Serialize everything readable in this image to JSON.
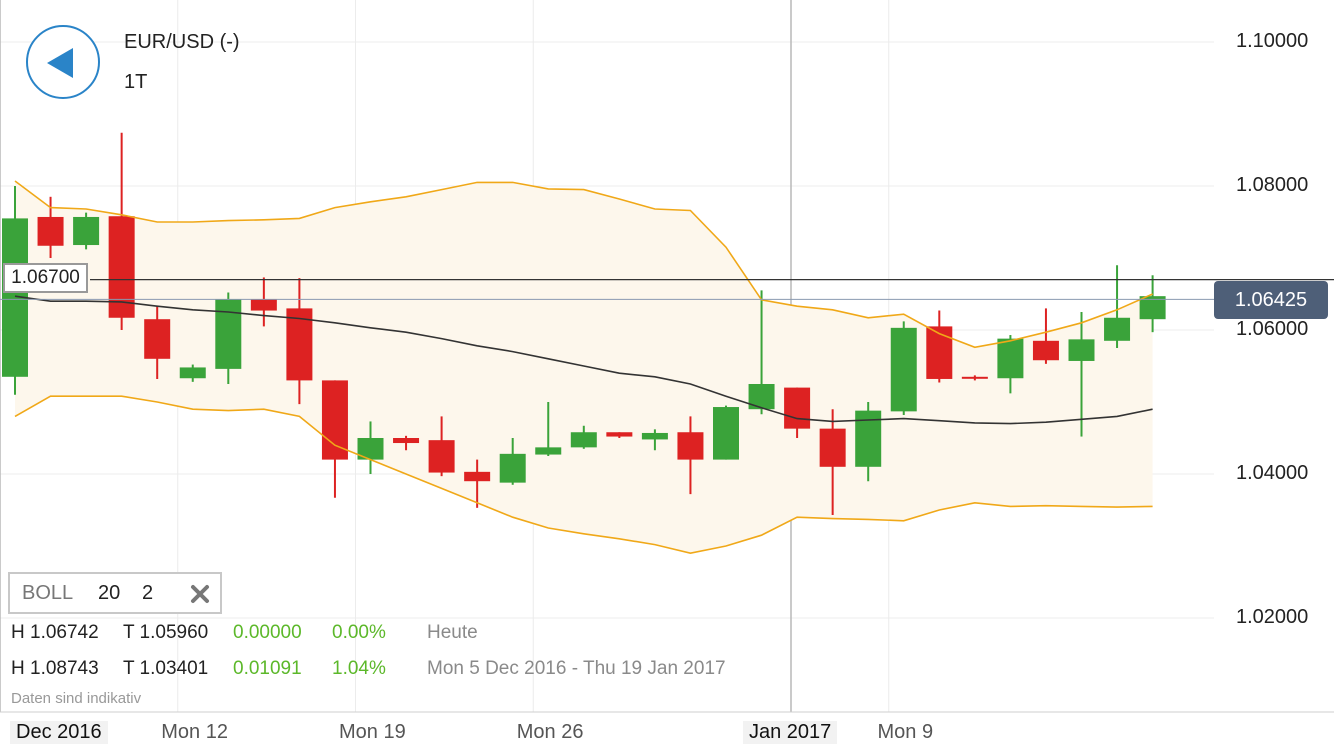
{
  "header": {
    "pair_title": "EUR/USD (-)",
    "timeframe": "1T"
  },
  "price_tag": "1.06425",
  "crosshair_label": "1.06700",
  "indicator": {
    "name": "BOLL",
    "period": "20",
    "stddev": "2"
  },
  "stats": {
    "today": {
      "high": "H 1.06742",
      "low": "T 1.05960",
      "change": "0.00000",
      "pct": "0.00%",
      "label": "Heute"
    },
    "range": {
      "high": "H 1.08743",
      "low": "T 1.03401",
      "change": "0.01091",
      "pct": "1.04%",
      "label": "Mon 5 Dec 2016 - Thu 19 Jan 2017"
    }
  },
  "disclaimer": "Daten sind indikativ",
  "colors": {
    "up": "#3aa33a",
    "down": "#dd2222",
    "band": "#f0a818",
    "sma": "#333333",
    "accent": "#2a84c8",
    "tag": "#4e5f78"
  },
  "chart_data": {
    "type": "candlestick",
    "y_ticks": [
      "1.10000",
      "1.08000",
      "1.06000",
      "1.04000",
      "1.02000"
    ],
    "ylim": [
      1.005,
      1.105
    ],
    "x_ticks": [
      "Dec 2016",
      "Mon 12",
      "Mon 19",
      "Mon 26",
      "Jan 2017",
      "Mon 9"
    ],
    "x_tick_dates": [
      "2016-12-01",
      "2016-12-12",
      "2016-12-19",
      "2016-12-26",
      "2017-01-02",
      "2017-01-09"
    ],
    "highlight_x_ticks": [
      "Dec 2016",
      "Jan 2017"
    ],
    "crosshair_price": 1.067,
    "last_price": 1.06425,
    "candles": [
      {
        "date": "2016-12-05",
        "open": 1.0535,
        "high": 1.08,
        "low": 1.051,
        "close": 1.0755
      },
      {
        "date": "2016-12-06",
        "open": 1.0757,
        "high": 1.0785,
        "low": 1.07,
        "close": 1.0717
      },
      {
        "date": "2016-12-07",
        "open": 1.0718,
        "high": 1.0763,
        "low": 1.0712,
        "close": 1.0757
      },
      {
        "date": "2016-12-08",
        "open": 1.0758,
        "high": 1.0874,
        "low": 1.06,
        "close": 1.0617
      },
      {
        "date": "2016-12-09",
        "open": 1.0615,
        "high": 1.0633,
        "low": 1.0532,
        "close": 1.056
      },
      {
        "date": "2016-12-12",
        "open": 1.0533,
        "high": 1.0552,
        "low": 1.0528,
        "close": 1.0548
      },
      {
        "date": "2016-12-13",
        "open": 1.0546,
        "high": 1.0652,
        "low": 1.0525,
        "close": 1.0643
      },
      {
        "date": "2016-12-14",
        "open": 1.0643,
        "high": 1.0673,
        "low": 1.0605,
        "close": 1.0627
      },
      {
        "date": "2016-12-15",
        "open": 1.063,
        "high": 1.0672,
        "low": 1.0497,
        "close": 1.053
      },
      {
        "date": "2016-12-16",
        "open": 1.053,
        "high": 1.053,
        "low": 1.0367,
        "close": 1.042
      },
      {
        "date": "2016-12-19",
        "open": 1.042,
        "high": 1.0473,
        "low": 1.04,
        "close": 1.045
      },
      {
        "date": "2016-12-20",
        "open": 1.045,
        "high": 1.0453,
        "low": 1.0433,
        "close": 1.0443
      },
      {
        "date": "2016-12-21",
        "open": 1.0447,
        "high": 1.048,
        "low": 1.0397,
        "close": 1.0402
      },
      {
        "date": "2016-12-22",
        "open": 1.0403,
        "high": 1.042,
        "low": 1.0353,
        "close": 1.039
      },
      {
        "date": "2016-12-23",
        "open": 1.0388,
        "high": 1.045,
        "low": 1.0385,
        "close": 1.0428
      },
      {
        "date": "2016-12-26",
        "open": 1.0427,
        "high": 1.05,
        "low": 1.0425,
        "close": 1.0437
      },
      {
        "date": "2016-12-27",
        "open": 1.0437,
        "high": 1.0467,
        "low": 1.0435,
        "close": 1.0458
      },
      {
        "date": "2016-12-28",
        "open": 1.0458,
        "high": 1.0458,
        "low": 1.045,
        "close": 1.0452
      },
      {
        "date": "2016-12-29",
        "open": 1.0448,
        "high": 1.0462,
        "low": 1.0433,
        "close": 1.0457
      },
      {
        "date": "2016-12-30",
        "open": 1.0458,
        "high": 1.048,
        "low": 1.0372,
        "close": 1.042
      },
      {
        "date": "2017-01-02",
        "open": 1.042,
        "high": 1.0495,
        "low": 1.042,
        "close": 1.0493
      },
      {
        "date": "2017-01-03",
        "open": 1.049,
        "high": 1.0655,
        "low": 1.0483,
        "close": 1.0525
      },
      {
        "date": "2017-01-04",
        "open": 1.052,
        "high": 1.052,
        "low": 1.045,
        "close": 1.0463
      },
      {
        "date": "2017-01-05",
        "open": 1.0463,
        "high": 1.049,
        "low": 1.0343,
        "close": 1.041
      },
      {
        "date": "2017-01-06",
        "open": 1.041,
        "high": 1.05,
        "low": 1.039,
        "close": 1.0488
      },
      {
        "date": "2017-01-09",
        "open": 1.0487,
        "high": 1.0612,
        "low": 1.0482,
        "close": 1.0603
      },
      {
        "date": "2017-01-10",
        "open": 1.0605,
        "high": 1.0627,
        "low": 1.0527,
        "close": 1.0532
      },
      {
        "date": "2017-01-11",
        "open": 1.0535,
        "high": 1.0537,
        "low": 1.053,
        "close": 1.0533
      },
      {
        "date": "2017-01-12",
        "open": 1.0533,
        "high": 1.0593,
        "low": 1.0512,
        "close": 1.0588
      },
      {
        "date": "2017-01-13",
        "open": 1.0585,
        "high": 1.063,
        "low": 1.0553,
        "close": 1.0558
      },
      {
        "date": "2017-01-16",
        "open": 1.0557,
        "high": 1.0625,
        "low": 1.0452,
        "close": 1.0587
      },
      {
        "date": "2017-01-17",
        "open": 1.0585,
        "high": 1.069,
        "low": 1.0575,
        "close": 1.0617
      },
      {
        "date": "2017-01-18",
        "open": 1.0615,
        "high": 1.0676,
        "low": 1.0597,
        "close": 1.0647
      }
    ],
    "bollinger": {
      "period": 20,
      "stddev": 2,
      "upper": [
        1.0807,
        1.077,
        1.0768,
        1.076,
        1.075,
        1.075,
        1.0752,
        1.0753,
        1.0755,
        1.077,
        1.0778,
        1.0785,
        1.0795,
        1.0805,
        1.0805,
        1.0796,
        1.0795,
        1.0782,
        1.0768,
        1.0766,
        1.0715,
        1.0642,
        1.0633,
        1.0628,
        1.0617,
        1.0622,
        1.0595,
        1.0576,
        1.0585,
        1.0597,
        1.061,
        1.0628,
        1.065
      ],
      "middle": [
        1.0647,
        1.064,
        1.064,
        1.0639,
        1.0633,
        1.0628,
        1.0625,
        1.062,
        1.0616,
        1.061,
        1.0603,
        1.0597,
        1.0588,
        1.0578,
        1.057,
        1.056,
        1.055,
        1.054,
        1.0535,
        1.0525,
        1.0508,
        1.0492,
        1.0477,
        1.0473,
        1.0475,
        1.0477,
        1.0474,
        1.0471,
        1.047,
        1.0472,
        1.0476,
        1.048,
        1.049
      ],
      "lower": [
        1.048,
        1.0508,
        1.0508,
        1.0508,
        1.05,
        1.049,
        1.0488,
        1.049,
        1.048,
        1.044,
        1.042,
        1.04,
        1.038,
        1.036,
        1.034,
        1.0325,
        1.0317,
        1.031,
        1.0302,
        1.029,
        1.03,
        1.0315,
        1.034,
        1.0338,
        1.0337,
        1.0335,
        1.035,
        1.036,
        1.0355,
        1.0356,
        1.0355,
        1.0354,
        1.0355
      ]
    }
  }
}
